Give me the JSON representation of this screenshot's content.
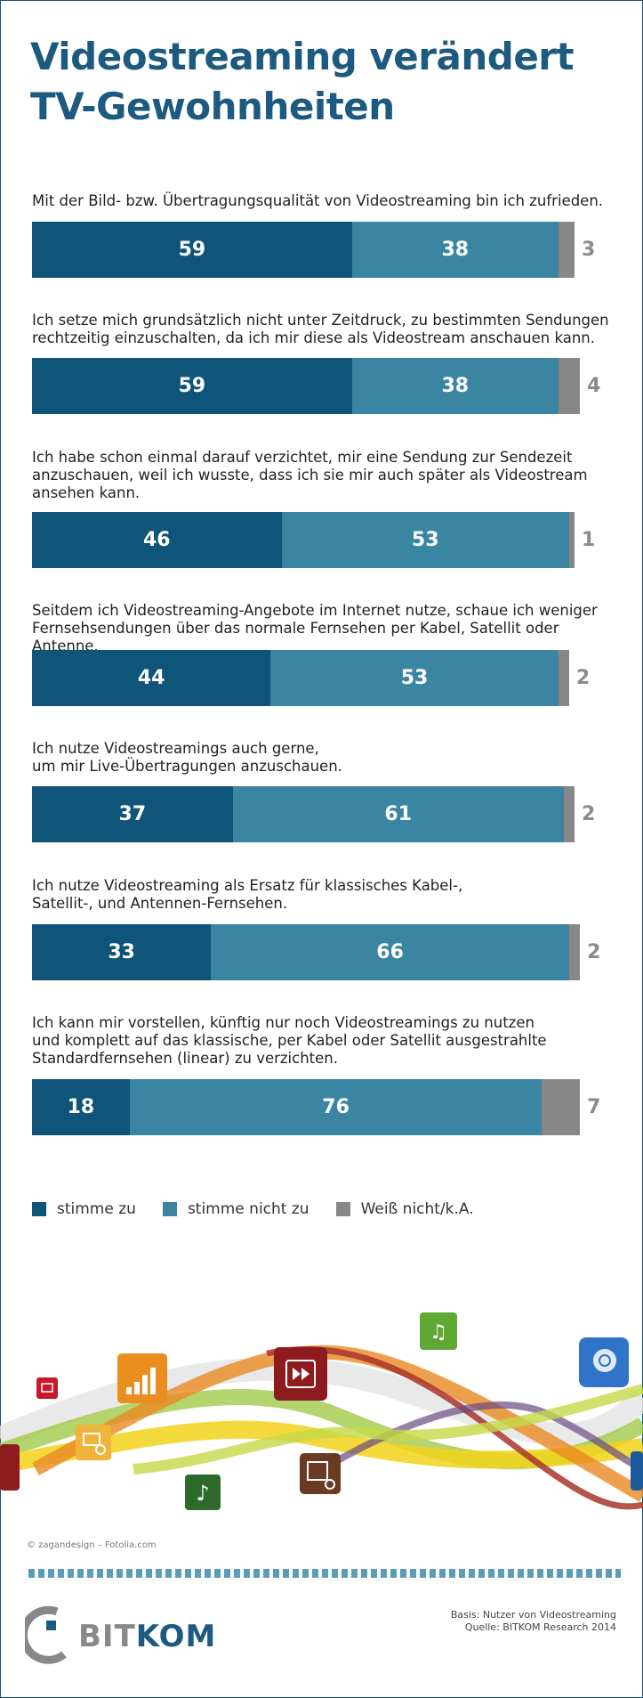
{
  "title_lines": [
    "Videostreaming verändert",
    "TV-Gewohnheiten"
  ],
  "colors": {
    "agree": "#0f5479",
    "disagree": "#3a85a2",
    "unknown": "#878787"
  },
  "chart_data": {
    "type": "bar",
    "stacked": true,
    "orientation": "horizontal",
    "title": "Videostreaming verändert TV-Gewohnheiten",
    "unit": "%",
    "categories": [
      "Mit der Bild- bzw. Übertragungsqualität von Videostreaming bin ich zufrieden.",
      "Ich setze mich grundsätzlich nicht unter Zeitdruck, zu bestimmten Sendungen rechtzeitig einzuschalten, da ich mir diese als Videostream anschauen kann.",
      "Ich habe schon einmal darauf verzichtet, mir eine Sendung zur Sendezeit anzuschauen, weil ich wusste, dass ich sie mir auch später als Videostream ansehen kann.",
      "Seitdem ich Videostreaming-Angebote im Internet nutze, schaue ich weniger Fernsehsendungen über das normale Fernsehen per Kabel, Satellit oder Antenne.",
      "Ich nutze Videostreamings auch gerne, um mir Live-Übertragungen anzuschauen.",
      "Ich nutze Videostreaming als Ersatz für klassisches Kabel-, Satellit-, und Antennen-Fernsehen.",
      "Ich kann mir vorstellen, künftig nur noch Videostreamings zu nutzen und komplett auf das klassische, per Kabel oder Satellit ausgestrahlte Standardfernsehen (linear) zu verzichten."
    ],
    "question_lines": [
      [
        "Mit der Bild- bzw. Übertragungsqualität von Videostreaming bin ich zufrieden."
      ],
      [
        "Ich setze mich grundsätzlich nicht unter Zeitdruck, zu bestimmten Sendungen",
        "rechtzeitig einzuschalten, da ich mir diese als Videostream anschauen kann."
      ],
      [
        "Ich habe schon einmal darauf verzichtet, mir eine  Sendung zur Sendezeit",
        "anzuschauen, weil ich wusste, dass ich sie mir auch später als Videostream",
        "ansehen kann."
      ],
      [
        "Seitdem ich Videostreaming-Angebote im Internet nutze, schaue ich weniger",
        "Fernsehsendungen über das normale Fernsehen per Kabel, Satellit oder Antenne."
      ],
      [
        "Ich nutze Videostreamings auch gerne,",
        "um mir Live-Übertragungen anzuschauen."
      ],
      [
        "Ich nutze Videostreaming als Ersatz für klassisches Kabel-,",
        "Satellit-, und Antennen-Fernsehen."
      ],
      [
        "Ich kann mir vorstellen, künftig nur noch Videostreamings zu nutzen",
        "und komplett auf das klassische, per Kabel oder Satellit ausgestrahlte",
        "Standardfernsehen (linear) zu verzichten."
      ]
    ],
    "series": [
      {
        "name": "stimme zu",
        "values": [
          59,
          59,
          46,
          44,
          37,
          33,
          18
        ]
      },
      {
        "name": "stimme nicht zu",
        "values": [
          38,
          38,
          53,
          53,
          61,
          66,
          76
        ]
      },
      {
        "name": "Weiß nicht/k.A.",
        "values": [
          3,
          4,
          1,
          2,
          2,
          2,
          7
        ]
      }
    ],
    "xlim": [
      0,
      100
    ],
    "legend": [
      "stimme zu",
      "stimme nicht zu",
      "Weiß nicht/k.A."
    ]
  },
  "decoration": {
    "credit": "© zagandesign – Fotolia.com",
    "icons": [
      "email-icon",
      "equalizer-icon",
      "photo-search-icon",
      "fast-forward-icon",
      "music-notes-icon",
      "rewind-search-icon",
      "music-note-icon",
      "search-icon"
    ]
  },
  "logo": {
    "text_a": "BIT",
    "text_b": "KOM"
  },
  "source_lines": [
    "Basis: Nutzer von Videostreaming",
    "Quelle: BITKOM Research 2014"
  ]
}
